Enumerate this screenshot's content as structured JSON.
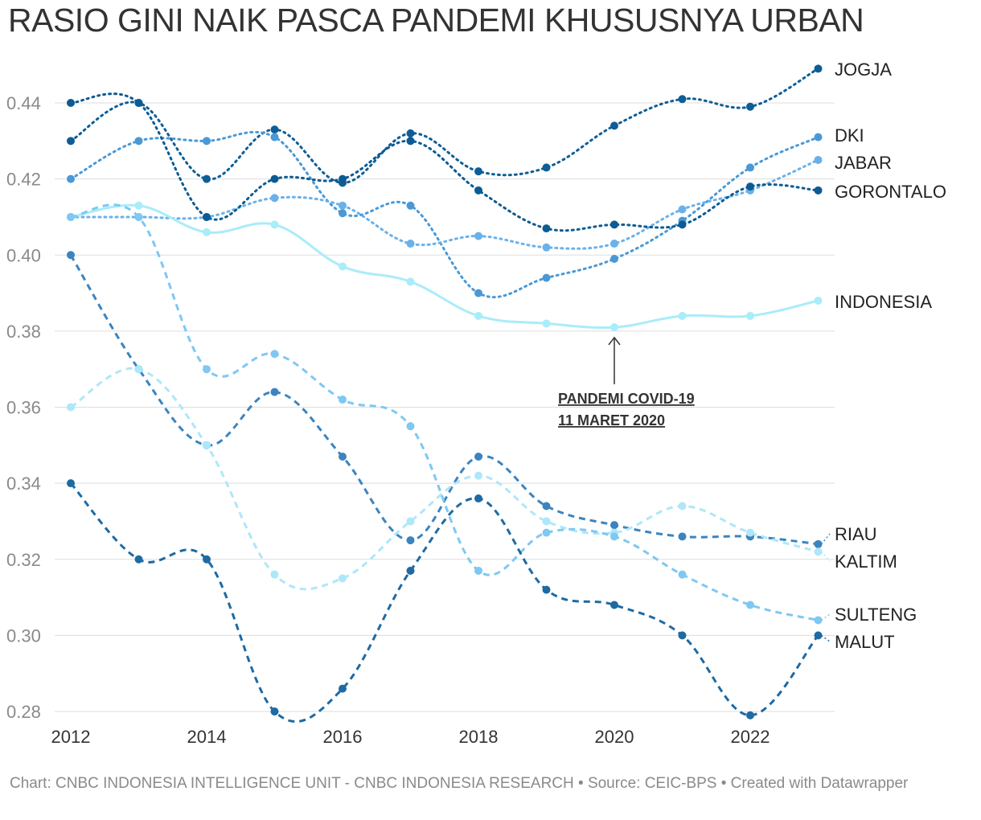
{
  "title": "RASIO GINI NAIK PASCA PANDEMI KHUSUSNYA URBAN",
  "footer": "Chart: CNBC INDONESIA INTELLIGENCE UNIT - CNBC INDONESIA RESEARCH • Source: CEIC-BPS • Created with Datawrapper",
  "chart_data": {
    "type": "line",
    "title": "RASIO GINI NAIK PASCA PANDEMI KHUSUSNYA URBAN",
    "xlabel": "",
    "ylabel": "",
    "x": [
      2012,
      2013,
      2014,
      2015,
      2016,
      2017,
      2018,
      2019,
      2020,
      2021,
      2022,
      2023
    ],
    "xticks": [
      "2012",
      "2014",
      "2016",
      "2018",
      "2020",
      "2022"
    ],
    "yticks": [
      "0.28",
      "0.30",
      "0.32",
      "0.34",
      "0.36",
      "0.38",
      "0.40",
      "0.42",
      "0.44"
    ],
    "ylim": [
      0.28,
      0.44
    ],
    "grid": true,
    "legend": "direct labels at right",
    "annotation": {
      "line1": "PANDEMI COVID-19",
      "line2": "11 MARET 2020",
      "x": 2020,
      "y": 0.38
    },
    "series": [
      {
        "name": "JOGJA",
        "color": "#0d5e97",
        "dash": "dotted",
        "values": [
          0.43,
          0.44,
          0.42,
          0.433,
          0.419,
          0.432,
          0.422,
          0.423,
          0.434,
          0.441,
          0.439,
          0.449
        ]
      },
      {
        "name": "DKI",
        "color": "#4a99d6",
        "dash": "dotted",
        "values": [
          0.42,
          0.43,
          0.43,
          0.431,
          0.411,
          0.413,
          0.39,
          0.394,
          0.399,
          0.409,
          0.423,
          0.431
        ]
      },
      {
        "name": "JABAR",
        "color": "#6ab1ea",
        "dash": "dotted",
        "values": [
          0.41,
          0.41,
          0.41,
          0.415,
          0.413,
          0.403,
          0.405,
          0.402,
          0.403,
          0.412,
          0.417,
          0.425
        ]
      },
      {
        "name": "GORONTALO",
        "color": "#0b5b94",
        "dash": "dotted",
        "values": [
          0.44,
          0.44,
          0.41,
          0.42,
          0.42,
          0.43,
          0.417,
          0.407,
          0.408,
          0.408,
          0.418,
          0.417
        ]
      },
      {
        "name": "INDONESIA",
        "color": "#a9ecfa",
        "dash": "solid",
        "values": [
          0.41,
          0.413,
          0.406,
          0.408,
          0.397,
          0.393,
          0.384,
          0.382,
          0.381,
          0.384,
          0.384,
          0.388
        ]
      },
      {
        "name": "RIAU",
        "color": "#3b84c0",
        "dash": "dashed",
        "values": [
          0.4,
          0.37,
          0.35,
          0.364,
          0.347,
          0.325,
          0.347,
          0.334,
          0.329,
          0.326,
          0.326,
          0.324
        ]
      },
      {
        "name": "KALTIM",
        "color": "#aee7f9",
        "dash": "dashed",
        "values": [
          0.36,
          0.37,
          0.35,
          0.316,
          0.315,
          0.33,
          0.342,
          0.33,
          0.327,
          0.334,
          0.327,
          0.322
        ]
      },
      {
        "name": "SULTENG",
        "color": "#7ec8f2",
        "dash": "dashed",
        "values": [
          0.41,
          0.41,
          0.37,
          0.374,
          0.362,
          0.355,
          0.317,
          0.327,
          0.326,
          0.316,
          0.308,
          0.304
        ]
      },
      {
        "name": "MALUT",
        "color": "#1e6aa3",
        "dash": "dashed",
        "values": [
          0.34,
          0.32,
          0.32,
          0.28,
          0.286,
          0.317,
          0.336,
          0.312,
          0.308,
          0.3,
          0.279,
          0.3
        ]
      }
    ]
  }
}
